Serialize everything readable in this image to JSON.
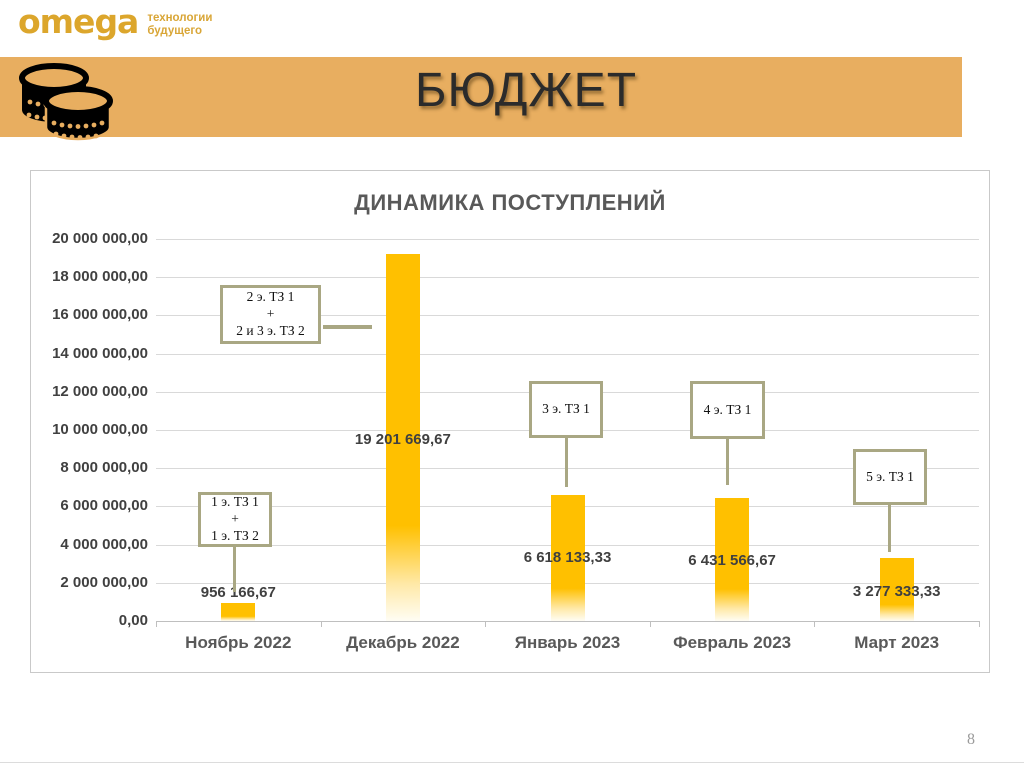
{
  "logo": {
    "brand": "omega",
    "tagline_line1": "технологии",
    "tagline_line2": "будущего",
    "color": "#DCA62C"
  },
  "header": {
    "title": "БЮДЖЕТ",
    "icon": "coins-icon",
    "band_color": "#E8AE60"
  },
  "footer": {
    "page_number": "8"
  },
  "chart_data": {
    "type": "bar",
    "title": "ДИНАМИКА ПОСТУПЛЕНИЙ",
    "categories": [
      "Ноябрь 2022",
      "Декабрь 2022",
      "Январь 2023",
      "Февраль 2023",
      "Март 2023"
    ],
    "values": [
      956166.67,
      19201669.67,
      6618133.33,
      6431566.67,
      3277333.33
    ],
    "value_labels": [
      "956 166,67",
      "19 201 669,67",
      "6 618 133,33",
      "6 431 566,67",
      "3 277 333,33"
    ],
    "ylim": [
      0,
      20000000
    ],
    "ytick_step": 2000000,
    "ytick_labels": [
      "0,00",
      "2 000 000,00",
      "4 000 000,00",
      "6 000 000,00",
      "8 000 000,00",
      "10 000 000,00",
      "12 000 000,00",
      "14 000 000,00",
      "16 000 000,00",
      "18 000 000,00",
      "20 000 000,00"
    ],
    "grid": true,
    "legend": false,
    "xlabel": "",
    "ylabel": "",
    "bar_color": "#FFC000",
    "annotation_border_color": "#A9A783",
    "annotations": [
      {
        "lines": [
          "1 э. ТЗ 1",
          "+",
          "1 э. ТЗ 2"
        ],
        "target_category": "Ноябрь 2022"
      },
      {
        "lines": [
          "2 э. ТЗ 1",
          "+",
          "2 и 3 э. ТЗ 2"
        ],
        "target_category": "Декабрь 2022"
      },
      {
        "lines": [
          "3 э. ТЗ 1"
        ],
        "target_category": "Январь 2023"
      },
      {
        "lines": [
          "4 э. ТЗ 1"
        ],
        "target_category": "Февраль 2023"
      },
      {
        "lines": [
          "5 э. ТЗ 1"
        ],
        "target_category": "Март 2023"
      }
    ]
  }
}
